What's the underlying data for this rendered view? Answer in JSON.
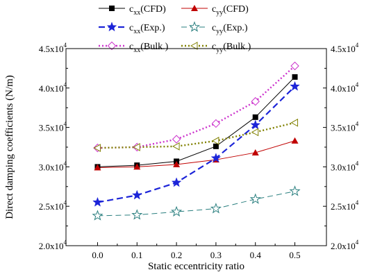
{
  "chart_data": {
    "type": "line",
    "xlabel": "Static eccentricity ratio",
    "ylabel": "Direct damping coefficients (N/m)",
    "x": [
      0.0,
      0.1,
      0.2,
      0.3,
      0.4,
      0.5
    ],
    "x_tick_labels": [
      "0.0",
      "0.1",
      "0.2",
      "0.3",
      "0.4",
      "0.5"
    ],
    "xlim": [
      -0.08,
      0.58
    ],
    "ylim": [
      20000,
      45000
    ],
    "y_ticks": [
      20000,
      25000,
      30000,
      35000,
      40000,
      45000
    ],
    "y_tick_mantissa": [
      "2.0x10",
      "2.5x10",
      "3.0x10",
      "3.5x10",
      "4.0x10",
      "4.5x10"
    ],
    "y_tick_exponent": "4",
    "right_axis_mirrors_left": true,
    "grid": false,
    "legend_position": "top",
    "series": [
      {
        "name": "c",
        "sub": "xx",
        "suffix": "(CFD)",
        "color": "#000000",
        "marker": "square-filled",
        "line": "solid",
        "values": [
          30000,
          30200,
          30700,
          32600,
          36300,
          41400
        ]
      },
      {
        "name": "c",
        "sub": "yy",
        "suffix": "(CFD)",
        "color": "#c00000",
        "marker": "triangle-filled",
        "line": "solid",
        "values": [
          29900,
          30000,
          30300,
          30900,
          31800,
          33300
        ]
      },
      {
        "name": "c",
        "sub": "xx",
        "suffix": "(Exp.)",
        "color": "#1c24d8",
        "marker": "star-filled",
        "line": "dash",
        "values": [
          25500,
          26400,
          28000,
          31100,
          35300,
          40200
        ]
      },
      {
        "name": "c",
        "sub": "yy",
        "suffix": "(Exp.)",
        "color": "#2a7f7f",
        "marker": "star-open",
        "line": "dash-thin",
        "values": [
          23800,
          23900,
          24300,
          24700,
          25900,
          26900
        ]
      },
      {
        "name": "c",
        "sub": "xx",
        "suffix": "(Bulk.)",
        "color": "#cc33cc",
        "marker": "diamond-open",
        "line": "dot",
        "values": [
          32400,
          32500,
          33500,
          35500,
          38300,
          42800
        ]
      },
      {
        "name": "c",
        "sub": "yy",
        "suffix": "(Bulk.)",
        "color": "#808000",
        "marker": "triangle-left-open",
        "line": "dot",
        "values": [
          32400,
          32500,
          32600,
          33300,
          34400,
          35600
        ]
      }
    ]
  }
}
